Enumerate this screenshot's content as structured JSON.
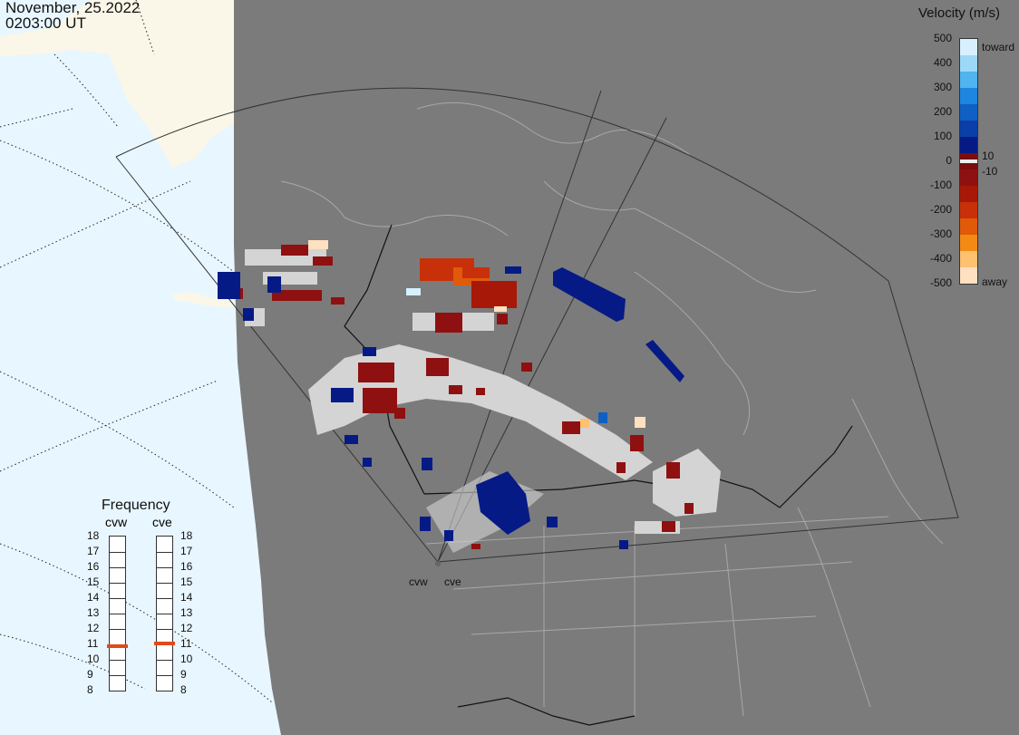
{
  "header": {
    "date": "November, 25.2022",
    "time": "0203:00 UT"
  },
  "velocity_scale": {
    "title": "Velocity (m/s)",
    "ticks": [
      "500",
      "400",
      "300",
      "200",
      "100",
      "0",
      "-100",
      "-200",
      "-300",
      "-400",
      "-500"
    ],
    "toward_label": "toward",
    "away_label": "away",
    "label_pos": "10",
    "label_neg": "-10",
    "colors": [
      "#d7f0ff",
      "#9cd8f8",
      "#4fb4f0",
      "#1c86e0",
      "#0f5fc4",
      "#0a3ea8",
      "#061a86",
      "#7a0d0d",
      "#8f1010",
      "#a81808",
      "#c8300a",
      "#e05a0a",
      "#f48a14",
      "#ffc070",
      "#ffe0c0"
    ]
  },
  "frequency": {
    "title": "Frequency",
    "radars": [
      {
        "name": "cvw",
        "value": 10.8
      },
      {
        "name": "cve",
        "value": 11.0
      }
    ],
    "levels": [
      "18",
      "17",
      "16",
      "15",
      "14",
      "13",
      "12",
      "11",
      "10",
      "9",
      "8"
    ],
    "marker_color": "#e04a1a"
  },
  "radars": [
    "cvw",
    "cve"
  ],
  "colors": {
    "land": "#7b7b7b",
    "ocean": "#e8f6ff",
    "ice": "#faf7e8",
    "gray_scatter": "#d4d4d4",
    "coast": "#a8a8a8"
  }
}
